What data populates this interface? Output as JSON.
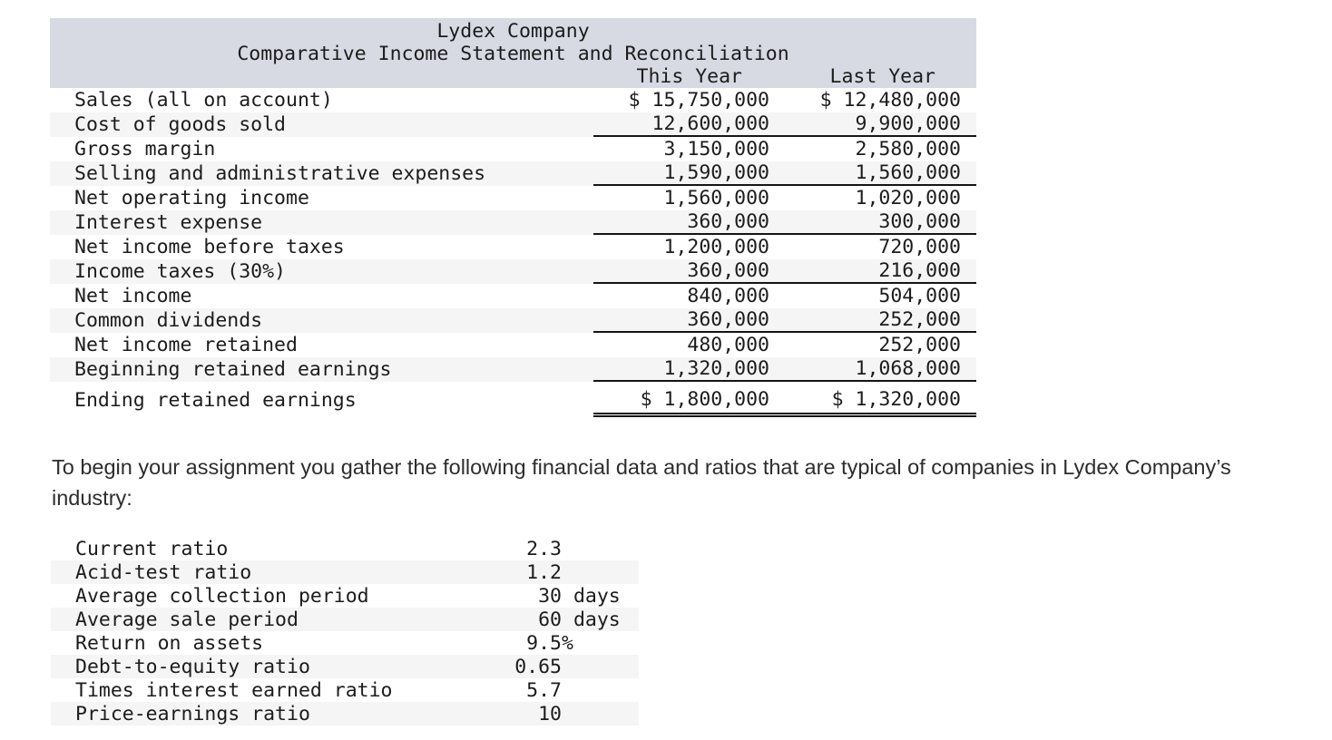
{
  "income_statement": {
    "title": "Lydex Company",
    "subtitle": "Comparative Income Statement and Reconciliation",
    "columns": [
      "This Year",
      "Last Year"
    ],
    "rows": [
      {
        "label": "Sales (all on account)",
        "this_year": "$ 15,750,000",
        "last_year": "$ 12,480,000",
        "underline": "none"
      },
      {
        "label": "Cost of goods sold",
        "this_year": "12,600,000",
        "last_year": "9,900,000",
        "underline": "single"
      },
      {
        "label": "Gross margin",
        "this_year": "3,150,000",
        "last_year": "2,580,000",
        "underline": "none"
      },
      {
        "label": "Selling and administrative expenses",
        "this_year": "1,590,000",
        "last_year": "1,560,000",
        "underline": "single"
      },
      {
        "label": "Net operating income",
        "this_year": "1,560,000",
        "last_year": "1,020,000",
        "underline": "none"
      },
      {
        "label": "Interest expense",
        "this_year": "360,000",
        "last_year": "300,000",
        "underline": "single"
      },
      {
        "label": "Net income before taxes",
        "this_year": "1,200,000",
        "last_year": "720,000",
        "underline": "none"
      },
      {
        "label": "Income taxes (30%)",
        "this_year": "360,000",
        "last_year": "216,000",
        "underline": "single"
      },
      {
        "label": "Net income",
        "this_year": "840,000",
        "last_year": "504,000",
        "underline": "none"
      },
      {
        "label": "Common dividends",
        "this_year": "360,000",
        "last_year": "252,000",
        "underline": "single"
      },
      {
        "label": "Net income retained",
        "this_year": "480,000",
        "last_year": "252,000",
        "underline": "none"
      },
      {
        "label": "Beginning retained earnings",
        "this_year": "1,320,000",
        "last_year": "1,068,000",
        "underline": "single"
      },
      {
        "label": "Ending retained earnings",
        "this_year": "$ 1,800,000",
        "last_year": "$ 1,320,000",
        "underline": "double"
      }
    ]
  },
  "paragraph": "To begin your assignment you gather the following financial data and ratios that are typical of companies in Lydex Company’s industry:",
  "industry_ratios": {
    "rows": [
      {
        "label": "Current ratio",
        "value": "2.3",
        "suffix": ""
      },
      {
        "label": "Acid-test ratio",
        "value": "1.2",
        "suffix": ""
      },
      {
        "label": "Average collection period",
        "value": "30",
        "suffix": " days"
      },
      {
        "label": "Average sale period",
        "value": "60",
        "suffix": " days"
      },
      {
        "label": "Return on assets",
        "value": "9.5",
        "suffix": "%"
      },
      {
        "label": "Debt-to-equity ratio",
        "value": "0.65",
        "suffix": ""
      },
      {
        "label": "Times interest earned ratio",
        "value": "5.7",
        "suffix": ""
      },
      {
        "label": "Price-earnings ratio",
        "value": "10",
        "suffix": ""
      }
    ]
  },
  "colors": {
    "header_bg": "#d7dae3",
    "alt_row_bg": "#f5f5f5",
    "rule_color": "#151515",
    "table_text": "#1c1c1c",
    "paragraph_text": "#2d2d2d"
  }
}
